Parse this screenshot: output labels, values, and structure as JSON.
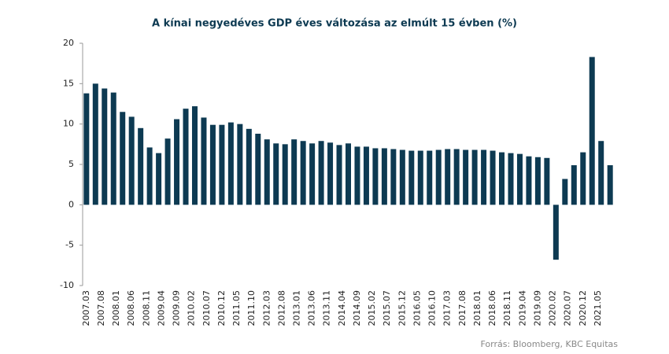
{
  "chart_data": {
    "type": "bar",
    "title": "A kínai negyedéves GDP éves változása az elmúlt 15 évben (%)",
    "source": "Forrás: Bloomberg, KBC Equitas",
    "color": "#0d3a52",
    "x": [
      "2007.03",
      "2007.06",
      "2007.09",
      "2007.12",
      "2008.03",
      "2008.06",
      "2008.09",
      "2008.12",
      "2009.03",
      "2009.06",
      "2009.09",
      "2009.12",
      "2010.03",
      "2010.06",
      "2010.09",
      "2010.12",
      "2011.03",
      "2011.06",
      "2011.09",
      "2011.12",
      "2012.03",
      "2012.06",
      "2012.09",
      "2012.12",
      "2013.03",
      "2013.06",
      "2013.09",
      "2013.12",
      "2014.03",
      "2014.06",
      "2014.09",
      "2014.12",
      "2015.03",
      "2015.06",
      "2015.09",
      "2015.12",
      "2016.03",
      "2016.06",
      "2016.09",
      "2016.12",
      "2017.03",
      "2017.06",
      "2017.09",
      "2017.12",
      "2018.03",
      "2018.06",
      "2018.09",
      "2018.12",
      "2019.03",
      "2019.06",
      "2019.09",
      "2019.12",
      "2020.03",
      "2020.06",
      "2020.09",
      "2020.12",
      "2021.03",
      "2021.06",
      "2021.09"
    ],
    "values": [
      13.8,
      15.0,
      14.4,
      13.9,
      11.5,
      10.9,
      9.5,
      7.1,
      6.4,
      8.2,
      10.6,
      11.9,
      12.2,
      10.8,
      9.9,
      9.9,
      10.2,
      10.0,
      9.4,
      8.8,
      8.1,
      7.6,
      7.5,
      8.1,
      7.9,
      7.6,
      7.9,
      7.7,
      7.4,
      7.6,
      7.2,
      7.2,
      7.0,
      7.0,
      6.9,
      6.8,
      6.7,
      6.7,
      6.7,
      6.8,
      6.9,
      6.9,
      6.8,
      6.8,
      6.8,
      6.7,
      6.5,
      6.4,
      6.3,
      6.0,
      5.9,
      5.8,
      -6.8,
      3.2,
      4.9,
      6.5,
      18.3,
      7.9,
      4.9
    ],
    "xlim": [
      "2007.02",
      "2021.10"
    ],
    "xticks": [
      "2007.03",
      "2007.08",
      "2008.01",
      "2008.06",
      "2008.11",
      "2009.04",
      "2009.09",
      "2010.02",
      "2010.07",
      "2010.12",
      "2011.05",
      "2011.10",
      "2012.03",
      "2012.08",
      "2013.01",
      "2013.06",
      "2013.11",
      "2014.04",
      "2014.09",
      "2015.02",
      "2015.07",
      "2015.12",
      "2016.05",
      "2016.10",
      "2017.03",
      "2017.08",
      "2018.01",
      "2018.06",
      "2018.11",
      "2019.04",
      "2019.09",
      "2020.02",
      "2020.07",
      "2020.12",
      "2021.05"
    ],
    "ylim": [
      -10,
      20
    ],
    "yticks": [
      -10,
      -5,
      0,
      5,
      10,
      15,
      20
    ],
    "grid": false
  }
}
